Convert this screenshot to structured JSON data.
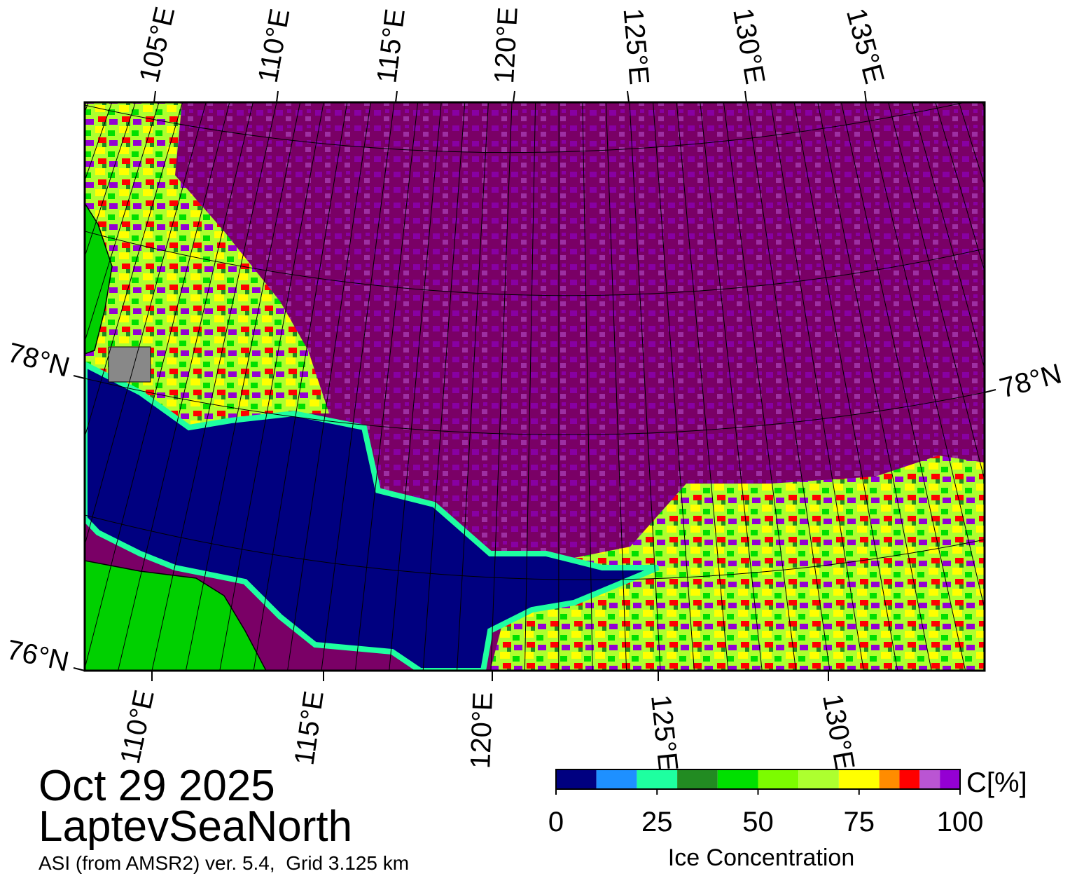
{
  "map": {
    "top_labels": [
      "105°E",
      "110°E",
      "115°E",
      "120°E",
      "125°E",
      "130°E",
      "135°E"
    ],
    "bottom_labels": [
      "110°E",
      "115°E",
      "120°E",
      "125°E",
      "130°E"
    ],
    "left_labels": [
      "78°N",
      "76°N"
    ],
    "right_labels": [
      "78°N"
    ]
  },
  "date": "Oct 29 2025",
  "region": "LaptevSeaNorth",
  "subtitle": "ASI (from AMSR2) ver. 5.4,  Grid 3.125 km",
  "colorbar": {
    "bounds": [
      0,
      10,
      20,
      30,
      40,
      50,
      60,
      70,
      80,
      85,
      90,
      95,
      100
    ],
    "colors": [
      "#000080",
      "#1e90ff",
      "#1effa0",
      "#228b22",
      "#00e000",
      "#7cfc00",
      "#adff2f",
      "#ffff00",
      "#ff8c00",
      "#ff0000",
      "#ba55d3",
      "#9400d3"
    ],
    "ticks": [
      0,
      25,
      50,
      75,
      100
    ],
    "unit": "C[%]",
    "label": "Ice Concentration"
  }
}
